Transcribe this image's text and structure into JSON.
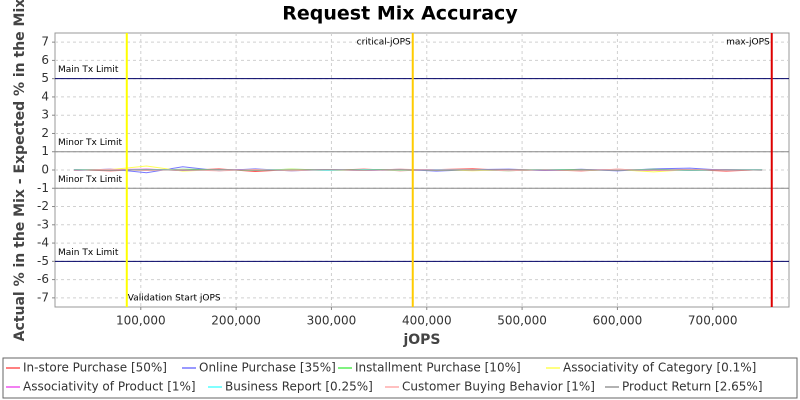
{
  "chart_data": {
    "type": "line",
    "title": "Request Mix Accuracy",
    "x_label": "jOPS",
    "y_label": "Actual % in the Mix - Expected % in the Mix",
    "xlim": [
      10000,
      780000
    ],
    "ylim": [
      -7.5,
      7.5
    ],
    "xticks": [
      {
        "value": 100000,
        "label": "100,000"
      },
      {
        "value": 200000,
        "label": "200,000"
      },
      {
        "value": 300000,
        "label": "300,000"
      },
      {
        "value": 400000,
        "label": "400,000"
      },
      {
        "value": 500000,
        "label": "500,000"
      },
      {
        "value": 600000,
        "label": "600,000"
      },
      {
        "value": 700000,
        "label": "700,000"
      }
    ],
    "yticks": [
      -7,
      -6,
      -5,
      -4,
      -3,
      -2,
      -1,
      0,
      1,
      2,
      3,
      4,
      5,
      6,
      7
    ],
    "grid": true,
    "reference_lines": [
      {
        "value": 5,
        "label": "Main Tx Limit",
        "color": "#000066"
      },
      {
        "value": 1,
        "label": "Minor Tx Limit",
        "color": "#888888"
      },
      {
        "value": -1,
        "label": "Minor Tx Limit",
        "color": "#888888"
      },
      {
        "value": -5,
        "label": "Main Tx Limit",
        "color": "#000066"
      }
    ],
    "markers": [
      {
        "value": 85300,
        "label": "Validation Start jOPS",
        "color": "#ffff00"
      },
      {
        "value": 385300,
        "label": "critical-jOPS",
        "color": "#ffcc00"
      },
      {
        "value": 761900,
        "label": "max-jOPS",
        "color": "#dd0000"
      }
    ],
    "x": [
      30000,
      68000,
      106000,
      144000,
      182000,
      220000,
      258000,
      296000,
      334000,
      372000,
      410000,
      448000,
      486000,
      524000,
      562000,
      600000,
      638000,
      676000,
      714000,
      752000
    ],
    "series": [
      {
        "name": "In-store Purchase [50%]",
        "color": "#ff5555",
        "values": [
          0.02,
          -0.05,
          0.04,
          -0.03,
          0.06,
          -0.08,
          0.03,
          -0.02,
          0.05,
          -0.04,
          0.02,
          0.07,
          -0.03,
          0.01,
          -0.05,
          0.04,
          -0.02,
          0.03,
          -0.06,
          0.02
        ]
      },
      {
        "name": "Online Purchase [35%]",
        "color": "#7777ff",
        "values": [
          -0.03,
          0.05,
          -0.15,
          0.18,
          -0.04,
          0.06,
          -0.05,
          0.03,
          -0.02,
          0.04,
          -0.06,
          0.02,
          0.05,
          -0.03,
          0.04,
          -0.05,
          0.06,
          0.1,
          -0.02,
          0.03
        ]
      },
      {
        "name": "Installment Purchase [10%]",
        "color": "#55ee55",
        "values": [
          0.01,
          0.03,
          -0.02,
          0.04,
          0.02,
          -0.03,
          0.05,
          -0.01,
          0.02,
          0.03,
          -0.02,
          0.01,
          -0.04,
          0.03,
          0.02,
          -0.01,
          0.04,
          -0.03,
          0.02,
          -0.01
        ]
      },
      {
        "name": "Associativity of Category [0.1%]",
        "color": "#ffff55",
        "values": [
          0.0,
          0.02,
          0.22,
          -0.06,
          0.03,
          -0.02,
          0.04,
          -0.03,
          0.01,
          -0.02,
          0.03,
          -0.04,
          0.02,
          0.01,
          -0.03,
          0.02,
          -0.1,
          0.03,
          -0.01,
          0.02
        ]
      },
      {
        "name": "Associativity of Product [1%]",
        "color": "#ee55ee",
        "values": [
          -0.01,
          0.02,
          0.05,
          -0.02,
          0.01,
          0.03,
          -0.02,
          0.02,
          -0.03,
          0.01,
          0.02,
          -0.01,
          0.03,
          -0.02,
          0.01,
          0.02,
          -0.03,
          0.01,
          0.02,
          -0.01
        ]
      },
      {
        "name": "Business Report [0.25%]",
        "color": "#55ffff",
        "values": [
          0.02,
          -0.01,
          0.03,
          0.01,
          -0.02,
          0.02,
          0.01,
          -0.03,
          0.02,
          -0.01,
          0.01,
          0.02,
          -0.02,
          0.03,
          -0.01,
          0.01,
          0.02,
          -0.02,
          0.01,
          0.02
        ]
      },
      {
        "name": "Customer Buying Behavior [1%]",
        "color": "#ffaaaa",
        "values": [
          -0.02,
          0.04,
          -0.03,
          0.02,
          -0.05,
          0.03,
          -0.04,
          0.02,
          -0.03,
          0.05,
          -0.02,
          0.03,
          -0.04,
          0.02,
          -0.03,
          0.04,
          -0.02,
          0.03,
          -0.02,
          0.01
        ]
      },
      {
        "name": "Product Return [2.65%]",
        "color": "#999999",
        "values": [
          0.01,
          -0.02,
          0.02,
          -0.01,
          0.03,
          -0.02,
          0.01,
          0.02,
          -0.01,
          0.02,
          -0.02,
          0.01,
          0.02,
          -0.01,
          0.01,
          -0.02,
          0.02,
          -0.01,
          0.01,
          0.0
        ]
      }
    ]
  }
}
